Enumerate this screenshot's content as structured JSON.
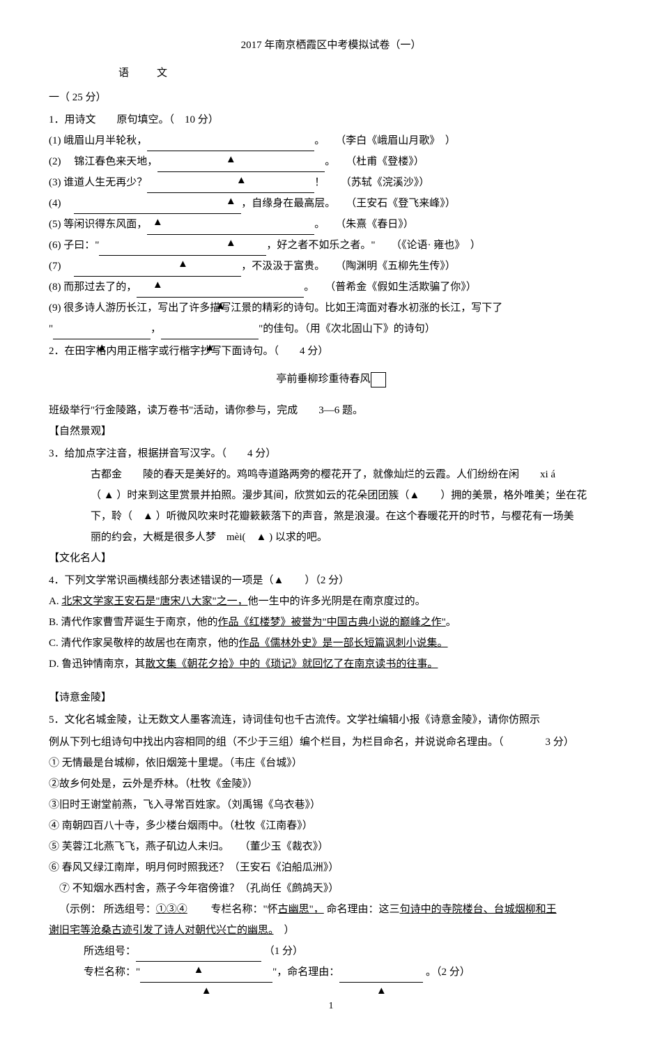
{
  "title": "2017 年南京栖霞区中考模拟试卷（一）",
  "subtitle": "语文",
  "section1": {
    "header": "一（ 25 分）",
    "q1": {
      "prompt": "1．用诗文　　原句填空。（　10 分）",
      "items": [
        {
          "num": "(1)",
          "text_before": "峨眉山月半轮秋，",
          "text_after": "。",
          "source": "（李白《峨眉山月歌》　）"
        },
        {
          "num": "(2)",
          "text_before": "　锦江春色来天地，",
          "text_after": "。",
          "source": "（杜甫《登楼》）"
        },
        {
          "num": "(3)",
          "text_before": "谁道人生无再少？",
          "text_after": "！",
          "source": "（苏轼《浣溪沙》）"
        },
        {
          "num": "(4)",
          "text_before": "",
          "text_after": "，自缘身在最高层。",
          "source": "（王安石《登飞来峰》）"
        },
        {
          "num": "(5)",
          "text_before": "等闲识得东风面，",
          "text_after": "。",
          "source": "（朱熹《春日》）"
        },
        {
          "num": "(6)",
          "text_before": "子曰：\"",
          "text_after": "，好之者不如乐之者。\"",
          "source": "（《论语· 雍也》　）"
        },
        {
          "num": "(7)",
          "text_before": "",
          "text_after": "，不汲汲于富贵。",
          "source": "（陶渊明《五柳先生传》）"
        },
        {
          "num": "(8)",
          "text_before": "而那过去了的，",
          "text_after": "。",
          "source": "（普希金《假如生活欺骗了你》）"
        }
      ],
      "item9": {
        "num": "(9)",
        "text": "很多诗人游历长江，写出了许多描写江景的精彩的诗句。比如王湾面对春水初涨的长江，写下了",
        "text2_before": "\"",
        "text2_mid": "，",
        "text2_after": "\"的佳句。（用《次北固山下》的诗句）"
      }
    },
    "q2": {
      "prompt": "2．在田字格内用正楷字或行楷字抄写下面诗句。（　　4 分）",
      "boxed": "亭前垂柳珍重待春风"
    },
    "activity_intro": "班级举行\"行金陵路，读万卷书\"活动，请你参与，完成　　3—6 题。",
    "heading_nature": "【自然景观】",
    "q3": {
      "prompt": "3．给加点字注音，根据拼音写汉字。（　　4 分）",
      "para_part1": "古都金　　陵的春天是美好的。鸡鸣寺道路两旁的樱花开了，就像灿烂的云霞。人们纷纷在闲　　xi á",
      "para_part2": "（ ▲ ）时来到这里赏景并拍照。漫步其间，欣赏如云的花朵团团簇（▲　　）拥的美景，格外唯美；坐在花",
      "para_part3": "下，聆（　▲ ）听微风吹来时花瓣簌簌落下的声音，煞是浪漫。在这个春暖花开的时节，与樱花有一场美",
      "para_part4": "丽的约会，大概是很多人梦　mèi(　▲ ) 以求的吧。"
    },
    "heading_culture": "【文化名人】",
    "q4": {
      "prompt": "4．下列文学常识画横线部分表述错误的一项是（▲　　）（2 分）",
      "options": [
        {
          "label": "A.",
          "underlined": "北宋文学家王安石是\"唐宋八大家\"之一，",
          "rest": "他一生中的许多光阴是在南京度过的。"
        },
        {
          "label": "B.",
          "text_before": "清代作家曹雪芹诞生于南京，他的",
          "underlined": "作品《红楼梦》被誉为\"中国古典小说的巅峰之作\"",
          "rest": "。"
        },
        {
          "label": "C.",
          "text_before": "清代作家吴敬梓的故居也在南京，他的",
          "underlined": "作品《儒林外史》是一部长短篇讽刺小说集。",
          "rest": ""
        },
        {
          "label": "D.",
          "text_before": "鲁迅钟情南京，其",
          "underlined": "散文集《朝花夕拾》中的《琐记》就回忆了在南京读书的往事。",
          "rest": ""
        }
      ]
    },
    "heading_poetry": "【诗意金陵】",
    "q5": {
      "prompt": "5．文化名城金陵，让无数文人墨客流连，诗词佳句也千古流传。文学社编辑小报《诗意金陵》，请你仿照示",
      "prompt2": "例从下列七组诗句中找出内容相同的组（不少于三组）编个栏目，为栏目命名，并说说命名理由。（　　　　3 分）",
      "poems": [
        "① 无情最是台城柳，依旧烟笼十里堤。（韦庄《台城》）",
        "②故乡何处是，云外是乔林。（杜牧《金陵》）",
        "③旧时王谢堂前燕，飞入寻常百姓家。（刘禹锡《乌衣巷》）",
        "④ 南朝四百八十寺，多少楼台烟雨中。（杜牧《江南春》）",
        "⑤ 芙蓉江北燕飞飞，燕子矶边人未归。　　（董少玉《裁衣》）",
        "⑥ 春风又绿江南岸，明月何时照我还？（王安石《泊船瓜洲》）",
        "　⑦ 不知烟水西村舍，燕子今年宿傍谁？（孔尚任《鹧鸪天》）"
      ],
      "example_label": "（示例：",
      "example_nums_label": "所选组号：",
      "example_nums": "①③④",
      "example_name_label": "　　专栏名称：\"怀",
      "example_name_underlined": "古幽思\"，",
      "example_reason_label": "命名理由：这三",
      "example_reason_underlined": "句诗中的寺院楼台、台城烟柳和王",
      "example_line2": "谢旧宅等沧桑古迹引发了诗人对朝代兴亡的幽思。",
      "example_close": "　）",
      "answer_nums_label": "所选组号：",
      "answer_nums_score": "（1 分）",
      "answer_name_label": "专栏名称：\"",
      "answer_name_mid": "\"，命名理由：",
      "answer_name_score": "。（2 分）"
    }
  },
  "page_num": "1"
}
